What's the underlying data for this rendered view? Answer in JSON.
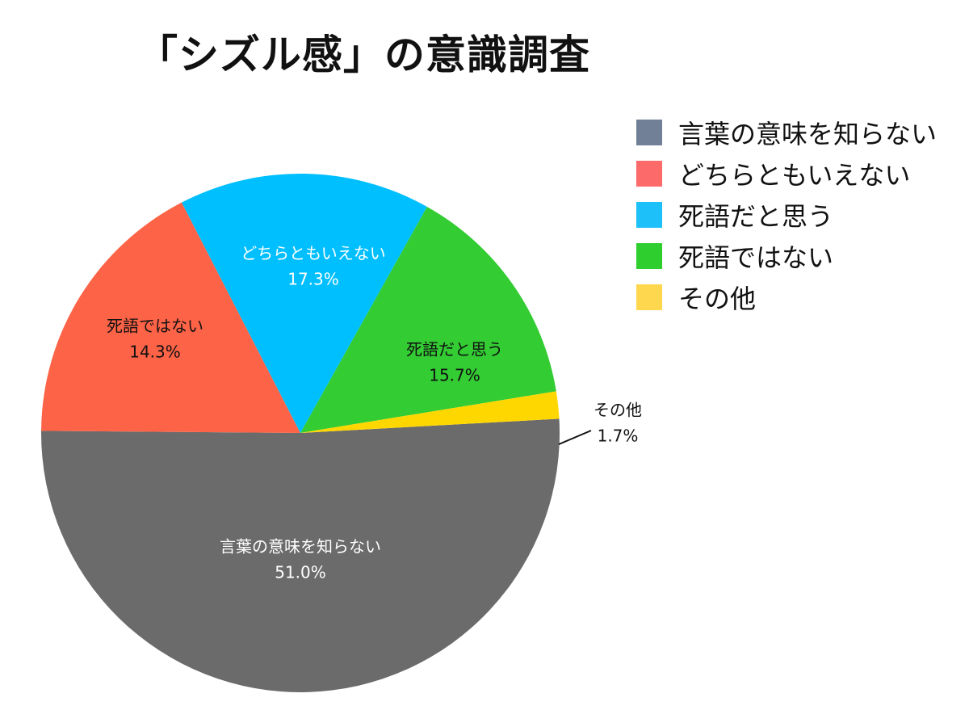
{
  "chart_data": {
    "type": "pie",
    "title": "「シズル感」の意識調査",
    "slices": [
      {
        "label": "言葉の意味を知らない",
        "value": 51.0,
        "pct_text": "51.0%",
        "color": "#6b6b6b",
        "legend_color": "#718096"
      },
      {
        "label": "どちらともいえない",
        "value": 17.3,
        "pct_text": "17.3%",
        "color": "#fd6347",
        "legend_color": "#fc6a6a"
      },
      {
        "label": "死語だと思う",
        "value": 15.7,
        "pct_text": "15.7%",
        "color": "#00bfff",
        "legend_color": "#1ec0fa"
      },
      {
        "label": "死語ではない",
        "value": 14.3,
        "pct_text": "14.3%",
        "color": "#33cc33",
        "legend_color": "#2ece2e"
      },
      {
        "label": "その他",
        "value": 1.7,
        "pct_text": "1.7%",
        "color": "#ffd700",
        "legend_color": "#ffd74f"
      }
    ],
    "legend": {
      "position": "top-right",
      "items": [
        {
          "label": "言葉の意味を知らない",
          "color": "#718096"
        },
        {
          "label": "どちらともいえない",
          "color": "#fc6a6a"
        },
        {
          "label": "死語だと思う",
          "color": "#1ec0fa"
        },
        {
          "label": "死語ではない",
          "color": "#2ece2e"
        },
        {
          "label": "その他",
          "color": "#ffd74f"
        }
      ]
    }
  }
}
